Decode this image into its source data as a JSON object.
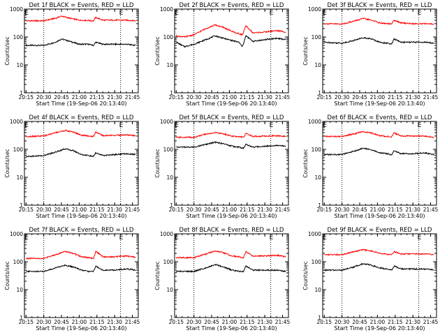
{
  "xlabel": "Start Time (19-Sep-06 20:13:40)",
  "ylabel": "Counts/sec",
  "x_tick_labels": [
    "20:15",
    "20:30",
    "20:45",
    "21:00",
    "21:15",
    "21:30",
    "21:45"
  ],
  "y_tick_labels": [
    "1",
    "10",
    "100",
    "1000"
  ],
  "marker_label": "E",
  "colors": {
    "events": "#000000",
    "lld": "#ff0000"
  },
  "chart_data": [
    {
      "type": "line",
      "title": "Det 1f BLACK = Events, RED = LLD",
      "xlabel": "Start Time (19-Sep-06 20:13:40)",
      "ylabel": "Counts/sec",
      "xlim": [
        "20:13:40",
        "21:50:00"
      ],
      "ylim": [
        1,
        1000
      ],
      "yscale": "log",
      "x_tick_labels": [
        "20:15",
        "20:30",
        "20:45",
        "21:00",
        "21:15",
        "21:30",
        "21:45"
      ],
      "y_tick_labels": [
        "1",
        "10",
        "100",
        "1000"
      ],
      "vertical_dotted_lines": [
        "20:30",
        "21:35"
      ],
      "markers": [
        {
          "label": "E",
          "x": "20:15"
        },
        {
          "label": "E",
          "x": "21:35"
        }
      ],
      "series": [
        {
          "color": "#000000",
          "x": [
            "20:15",
            "20:30",
            "20:40",
            "20:45",
            "20:52",
            "21:00",
            "21:08",
            "21:12",
            "21:14",
            "21:20",
            "21:30",
            "21:40",
            "21:48"
          ],
          "values": [
            50,
            50,
            65,
            85,
            70,
            55,
            55,
            50,
            65,
            55,
            55,
            55,
            50
          ]
        },
        {
          "color": "#ff0000",
          "x": [
            "20:15",
            "20:30",
            "20:40",
            "20:45",
            "20:52",
            "21:00",
            "21:08",
            "21:12",
            "21:14",
            "21:20",
            "21:30",
            "21:40",
            "21:48"
          ],
          "values": [
            380,
            380,
            470,
            560,
            470,
            400,
            390,
            380,
            500,
            400,
            400,
            400,
            380
          ]
        }
      ]
    },
    {
      "type": "line",
      "title": "Det 2f BLACK = Events, RED = LLD",
      "xlabel": "Start Time (19-Sep-06 20:13:40)",
      "ylabel": "Counts/sec",
      "xlim": [
        "20:13:40",
        "21:50:00"
      ],
      "ylim": [
        1,
        1000
      ],
      "yscale": "log",
      "x_tick_labels": [
        "20:15",
        "20:30",
        "20:45",
        "21:00",
        "21:15",
        "21:30",
        "21:45"
      ],
      "y_tick_labels": [
        "1",
        "10",
        "100",
        "1000"
      ],
      "vertical_dotted_lines": [
        "20:30",
        "21:35"
      ],
      "markers": [
        {
          "label": "E",
          "x": "20:15"
        },
        {
          "label": "E",
          "x": "21:35"
        }
      ],
      "series": [
        {
          "color": "#000000",
          "x": [
            "20:15",
            "20:22",
            "20:30",
            "20:40",
            "20:48",
            "20:55",
            "21:02",
            "21:08",
            "21:11",
            "21:14",
            "21:20",
            "21:30",
            "21:40",
            "21:48"
          ],
          "values": [
            65,
            45,
            55,
            80,
            110,
            90,
            75,
            65,
            45,
            110,
            70,
            80,
            90,
            80
          ]
        },
        {
          "color": "#ff0000",
          "x": [
            "20:15",
            "20:22",
            "20:30",
            "20:40",
            "20:48",
            "20:55",
            "21:02",
            "21:08",
            "21:11",
            "21:14",
            "21:20",
            "21:30",
            "21:40",
            "21:48"
          ],
          "values": [
            110,
            100,
            120,
            200,
            270,
            220,
            160,
            130,
            120,
            250,
            140,
            150,
            170,
            150
          ]
        }
      ]
    },
    {
      "type": "line",
      "title": "Det 3f BLACK = Events, RED = LLD",
      "xlabel": "Start Time (19-Sep-06 20:13:40)",
      "ylabel": "Counts/sec",
      "xlim": [
        "20:13:40",
        "21:50:00"
      ],
      "ylim": [
        1,
        1000
      ],
      "yscale": "log",
      "x_tick_labels": [
        "20:15",
        "20:30",
        "20:45",
        "21:00",
        "21:15",
        "21:30",
        "21:45"
      ],
      "y_tick_labels": [
        "1",
        "10",
        "100",
        "1000"
      ],
      "vertical_dotted_lines": [
        "20:30",
        "21:35"
      ],
      "markers": [
        {
          "label": "E",
          "x": "20:15"
        },
        {
          "label": "E",
          "x": "21:35"
        }
      ],
      "series": [
        {
          "color": "#000000",
          "x": [
            "20:15",
            "20:30",
            "20:40",
            "20:48",
            "20:55",
            "21:02",
            "21:08",
            "21:12",
            "21:14",
            "21:20",
            "21:30",
            "21:40",
            "21:48"
          ],
          "values": [
            65,
            60,
            75,
            95,
            85,
            65,
            60,
            55,
            85,
            65,
            65,
            65,
            60
          ]
        },
        {
          "color": "#ff0000",
          "x": [
            "20:15",
            "20:30",
            "20:40",
            "20:48",
            "20:55",
            "21:02",
            "21:08",
            "21:12",
            "21:14",
            "21:20",
            "21:30",
            "21:40",
            "21:48"
          ],
          "values": [
            300,
            290,
            370,
            460,
            400,
            320,
            300,
            290,
            400,
            320,
            300,
            300,
            290
          ]
        }
      ]
    },
    {
      "type": "line",
      "title": "Det 4f BLACK = Events, RED = LLD",
      "xlabel": "Start Time (19-Sep-06 20:13:40)",
      "ylabel": "Counts/sec",
      "xlim": [
        "20:13:40",
        "21:50:00"
      ],
      "ylim": [
        1,
        1000
      ],
      "yscale": "log",
      "x_tick_labels": [
        "20:15",
        "20:30",
        "20:45",
        "21:00",
        "21:15",
        "21:30",
        "21:45"
      ],
      "y_tick_labels": [
        "1",
        "10",
        "100",
        "1000"
      ],
      "vertical_dotted_lines": [
        "20:30",
        "21:35"
      ],
      "markers": [
        {
          "label": "E",
          "x": "20:15"
        },
        {
          "label": "E",
          "x": "21:35"
        }
      ],
      "series": [
        {
          "color": "#000000",
          "x": [
            "20:15",
            "20:30",
            "20:40",
            "20:48",
            "20:55",
            "21:02",
            "21:08",
            "21:12",
            "21:14",
            "21:20",
            "21:30",
            "21:40",
            "21:48"
          ],
          "values": [
            55,
            60,
            80,
            105,
            90,
            65,
            60,
            55,
            75,
            60,
            65,
            70,
            65
          ]
        },
        {
          "color": "#ff0000",
          "x": [
            "20:15",
            "20:30",
            "20:40",
            "20:48",
            "20:55",
            "21:02",
            "21:08",
            "21:12",
            "21:14",
            "21:20",
            "21:30",
            "21:40",
            "21:48"
          ],
          "values": [
            290,
            300,
            400,
            470,
            420,
            320,
            300,
            290,
            420,
            310,
            320,
            330,
            310
          ]
        }
      ]
    },
    {
      "type": "line",
      "title": "Det 5f BLACK = Events, RED = LLD",
      "xlabel": "Start Time (19-Sep-06 20:13:40)",
      "ylabel": "Counts/sec",
      "xlim": [
        "20:13:40",
        "21:50:00"
      ],
      "ylim": [
        1,
        1000
      ],
      "yscale": "log",
      "x_tick_labels": [
        "20:15",
        "20:30",
        "20:45",
        "21:00",
        "21:15",
        "21:30",
        "21:45"
      ],
      "y_tick_labels": [
        "1",
        "10",
        "100",
        "1000"
      ],
      "vertical_dotted_lines": [
        "20:30",
        "21:35"
      ],
      "markers": [
        {
          "label": "E",
          "x": "20:15"
        },
        {
          "label": "E",
          "x": "21:35"
        }
      ],
      "series": [
        {
          "color": "#000000",
          "x": [
            "20:15",
            "20:30",
            "20:40",
            "20:48",
            "20:55",
            "21:02",
            "21:08",
            "21:12",
            "21:14",
            "21:20",
            "21:30",
            "21:40",
            "21:48"
          ],
          "values": [
            120,
            120,
            150,
            180,
            160,
            130,
            120,
            110,
            150,
            120,
            130,
            140,
            130
          ]
        },
        {
          "color": "#ff0000",
          "x": [
            "20:15",
            "20:30",
            "20:40",
            "20:48",
            "20:55",
            "21:02",
            "21:08",
            "21:12",
            "21:14",
            "21:20",
            "21:30",
            "21:40",
            "21:48"
          ],
          "values": [
            270,
            270,
            350,
            400,
            360,
            300,
            280,
            270,
            370,
            290,
            300,
            310,
            290
          ]
        }
      ]
    },
    {
      "type": "line",
      "title": "Det 6f BLACK = Events, RED = LLD",
      "xlabel": "Start Time (19-Sep-06 20:13:40)",
      "ylabel": "Counts/sec",
      "xlim": [
        "20:13:40",
        "21:50:00"
      ],
      "ylim": [
        1,
        1000
      ],
      "yscale": "log",
      "x_tick_labels": [
        "20:15",
        "20:30",
        "20:45",
        "21:00",
        "21:15",
        "21:30",
        "21:45"
      ],
      "y_tick_labels": [
        "1",
        "10",
        "100",
        "1000"
      ],
      "vertical_dotted_lines": [
        "20:30",
        "21:35"
      ],
      "markers": [
        {
          "label": "E",
          "x": "20:15"
        },
        {
          "label": "E",
          "x": "21:35"
        }
      ],
      "series": [
        {
          "color": "#000000",
          "x": [
            "20:15",
            "20:30",
            "20:40",
            "20:48",
            "20:55",
            "21:02",
            "21:08",
            "21:12",
            "21:14",
            "21:20",
            "21:30",
            "21:40",
            "21:48"
          ],
          "values": [
            65,
            65,
            85,
            110,
            95,
            75,
            70,
            65,
            90,
            70,
            70,
            75,
            65
          ]
        },
        {
          "color": "#ff0000",
          "x": [
            "20:15",
            "20:30",
            "20:40",
            "20:48",
            "20:55",
            "21:02",
            "21:08",
            "21:12",
            "21:14",
            "21:20",
            "21:30",
            "21:40",
            "21:48"
          ],
          "values": [
            290,
            290,
            360,
            430,
            380,
            310,
            290,
            280,
            390,
            300,
            300,
            300,
            260
          ]
        }
      ]
    },
    {
      "type": "line",
      "title": "Det 7f BLACK = Events, RED = LLD",
      "xlabel": "Start Time (19-Sep-06 20:13:40)",
      "ylabel": "Counts/sec",
      "xlim": [
        "20:13:40",
        "21:50:00"
      ],
      "ylim": [
        1,
        1000
      ],
      "yscale": "log",
      "x_tick_labels": [
        "20:15",
        "20:30",
        "20:45",
        "21:00",
        "21:15",
        "21:30",
        "21:45"
      ],
      "y_tick_labels": [
        "1",
        "10",
        "100",
        "1000"
      ],
      "vertical_dotted_lines": [
        "20:30",
        "21:35"
      ],
      "markers": [
        {
          "label": "E",
          "x": "20:15"
        },
        {
          "label": "E",
          "x": "21:35"
        }
      ],
      "series": [
        {
          "color": "#000000",
          "x": [
            "20:15",
            "20:30",
            "20:40",
            "20:48",
            "20:55",
            "21:02",
            "21:08",
            "21:12",
            "21:14",
            "21:20",
            "21:30",
            "21:40",
            "21:48"
          ],
          "values": [
            45,
            45,
            60,
            75,
            65,
            50,
            45,
            45,
            70,
            50,
            50,
            55,
            50
          ]
        },
        {
          "color": "#ff0000",
          "x": [
            "20:15",
            "20:30",
            "20:40",
            "20:48",
            "20:55",
            "21:02",
            "21:08",
            "21:12",
            "21:14",
            "21:20",
            "21:30",
            "21:40",
            "21:48"
          ],
          "values": [
            130,
            130,
            180,
            230,
            200,
            150,
            140,
            130,
            240,
            150,
            150,
            160,
            145
          ]
        }
      ]
    },
    {
      "type": "line",
      "title": "Det 8f BLACK = Events, RED = LLD",
      "xlabel": "Start Time (19-Sep-06 20:13:40)",
      "ylabel": "Counts/sec",
      "xlim": [
        "20:13:40",
        "21:50:00"
      ],
      "ylim": [
        1,
        1000
      ],
      "yscale": "log",
      "x_tick_labels": [
        "20:15",
        "20:30",
        "20:45",
        "21:00",
        "21:15",
        "21:30",
        "21:45"
      ],
      "y_tick_labels": [
        "1",
        "10",
        "100",
        "1000"
      ],
      "vertical_dotted_lines": [
        "20:30",
        "21:35"
      ],
      "markers": [
        {
          "label": "E",
          "x": "20:15"
        },
        {
          "label": "E",
          "x": "21:35"
        }
      ],
      "series": [
        {
          "color": "#000000",
          "x": [
            "20:15",
            "20:30",
            "20:40",
            "20:48",
            "20:55",
            "21:02",
            "21:08",
            "21:12",
            "21:14",
            "21:20",
            "21:30",
            "21:40",
            "21:48"
          ],
          "values": [
            45,
            45,
            60,
            80,
            65,
            50,
            45,
            45,
            70,
            50,
            50,
            50,
            45
          ]
        },
        {
          "color": "#ff0000",
          "x": [
            "20:15",
            "20:30",
            "20:40",
            "20:48",
            "20:55",
            "21:02",
            "21:08",
            "21:12",
            "21:14",
            "21:20",
            "21:30",
            "21:40",
            "21:48"
          ],
          "values": [
            140,
            140,
            190,
            240,
            210,
            160,
            150,
            140,
            230,
            160,
            160,
            170,
            150
          ]
        }
      ]
    },
    {
      "type": "line",
      "title": "Det 9f BLACK = Events, RED = LLD",
      "xlabel": "Start Time (19-Sep-06 20:13:40)",
      "ylabel": "Counts/sec",
      "xlim": [
        "20:13:40",
        "21:50:00"
      ],
      "ylim": [
        1,
        1000
      ],
      "yscale": "log",
      "x_tick_labels": [
        "20:15",
        "20:30",
        "20:45",
        "21:00",
        "21:15",
        "21:30",
        "21:45"
      ],
      "y_tick_labels": [
        "1",
        "10",
        "100",
        "1000"
      ],
      "vertical_dotted_lines": [
        "20:30",
        "21:35"
      ],
      "markers": [
        {
          "label": "E",
          "x": "20:15"
        },
        {
          "label": "E",
          "x": "21:35"
        }
      ],
      "series": [
        {
          "color": "#000000",
          "x": [
            "20:15",
            "20:30",
            "20:40",
            "20:48",
            "20:55",
            "21:02",
            "21:08",
            "21:12",
            "21:14",
            "21:20",
            "21:30",
            "21:40",
            "21:48"
          ],
          "values": [
            50,
            50,
            65,
            85,
            75,
            60,
            55,
            50,
            70,
            55,
            55,
            55,
            50
          ]
        },
        {
          "color": "#ff0000",
          "x": [
            "20:15",
            "20:30",
            "20:40",
            "20:48",
            "20:55",
            "21:02",
            "21:08",
            "21:12",
            "21:14",
            "21:20",
            "21:30",
            "21:40",
            "21:48"
          ],
          "values": [
            180,
            180,
            230,
            270,
            240,
            200,
            185,
            180,
            230,
            190,
            190,
            190,
            180
          ]
        }
      ]
    }
  ]
}
